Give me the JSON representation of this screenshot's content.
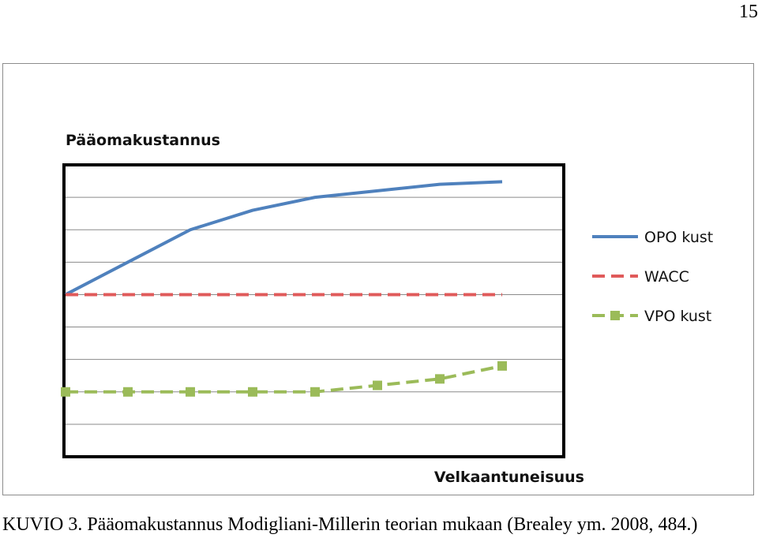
{
  "page_number": "15",
  "caption": "KUVIO 3. Pääomakustannus Modigliani-Millerin teorian mukaan (Brealey ym. 2008, 484.)",
  "chart_data": {
    "type": "line",
    "title": "Pääomakustannus",
    "xlabel": "Velkaantuneisuus",
    "ylabel": "",
    "grid": true,
    "legend_position": "right",
    "x": [
      0,
      1,
      2,
      3,
      4,
      5,
      6,
      7
    ],
    "ylim": [
      0,
      9
    ],
    "series": [
      {
        "name": "OPO kust",
        "color": "#4f81bd",
        "style": "solid",
        "marker": "none",
        "values": [
          5.0,
          6.0,
          7.0,
          7.6,
          8.0,
          8.2,
          8.4,
          8.48
        ]
      },
      {
        "name": "WACC",
        "color": "#e05a5a",
        "style": "dashed",
        "marker": "none",
        "values": [
          5.0,
          5.0,
          5.0,
          5.0,
          5.0,
          5.0,
          5.0,
          5.0
        ]
      },
      {
        "name": "VPO kust",
        "color": "#9bbb59",
        "style": "dashed",
        "marker": "square",
        "values": [
          2.0,
          2.0,
          2.0,
          2.0,
          2.0,
          2.2,
          2.4,
          2.8
        ]
      }
    ]
  }
}
